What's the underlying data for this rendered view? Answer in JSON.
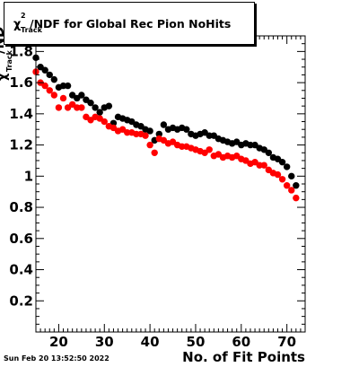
{
  "header": {
    "title_main": "/NDF for Global Rec Pion NoHits",
    "chi_symbol": "χ",
    "chi_power": "2",
    "chi_subscript": "Track"
  },
  "footer": {
    "datestamp": "Sun Feb 20 13:52:50 2022"
  },
  "axis_text": {
    "ytitle_main": "/ND",
    "ytitle_sub": "Track",
    "ytitle_power": "2",
    "xtitle": "No. of Fit Points"
  },
  "colors": {
    "series1": "#000000",
    "series2": "#ff0000"
  },
  "chart_data": {
    "type": "scatter",
    "title": "χ²_Track/NDF for Global Rec Pion NoHits",
    "xlabel": "No. of Fit Points",
    "ylabel": "χ²_Track/NDF",
    "xlim": [
      15,
      74
    ],
    "ylim": [
      0,
      1.9
    ],
    "xticks": [
      20,
      30,
      40,
      50,
      60,
      70
    ],
    "yticks": [
      0.2,
      0.4,
      0.6,
      0.8,
      1,
      1.2,
      1.4,
      1.6,
      1.8
    ],
    "grid": false,
    "series": [
      {
        "color": "#000000",
        "x": [
          15,
          16,
          17,
          18,
          19,
          20,
          21,
          22,
          23,
          24,
          25,
          26,
          27,
          28,
          29,
          30,
          31,
          32,
          33,
          34,
          35,
          36,
          37,
          38,
          39,
          40,
          41,
          42,
          43,
          44,
          45,
          46,
          47,
          48,
          49,
          50,
          51,
          52,
          53,
          54,
          55,
          56,
          57,
          58,
          59,
          60,
          61,
          62,
          63,
          64,
          65,
          66,
          67,
          68,
          69,
          70,
          71,
          72
        ],
        "y": [
          1.76,
          1.7,
          1.68,
          1.65,
          1.62,
          1.57,
          1.58,
          1.58,
          1.52,
          1.5,
          1.52,
          1.49,
          1.47,
          1.44,
          1.41,
          1.44,
          1.45,
          1.34,
          1.38,
          1.37,
          1.36,
          1.35,
          1.33,
          1.32,
          1.3,
          1.29,
          1.23,
          1.27,
          1.33,
          1.3,
          1.31,
          1.3,
          1.31,
          1.3,
          1.27,
          1.26,
          1.27,
          1.28,
          1.26,
          1.26,
          1.24,
          1.23,
          1.22,
          1.21,
          1.22,
          1.2,
          1.21,
          1.2,
          1.2,
          1.18,
          1.17,
          1.15,
          1.12,
          1.11,
          1.09,
          1.06,
          1.0,
          0.94
        ]
      },
      {
        "color": "#ff0000",
        "x": [
          15,
          16,
          17,
          18,
          19,
          20,
          21,
          22,
          23,
          24,
          25,
          26,
          27,
          28,
          29,
          30,
          31,
          32,
          33,
          34,
          35,
          36,
          37,
          38,
          39,
          40,
          41,
          42,
          43,
          44,
          45,
          46,
          47,
          48,
          49,
          50,
          51,
          52,
          53,
          54,
          55,
          56,
          57,
          58,
          59,
          60,
          61,
          62,
          63,
          64,
          65,
          66,
          67,
          68,
          69,
          70,
          71,
          72
        ],
        "y": [
          1.67,
          1.6,
          1.58,
          1.55,
          1.52,
          1.44,
          1.5,
          1.44,
          1.46,
          1.44,
          1.44,
          1.38,
          1.36,
          1.38,
          1.37,
          1.35,
          1.32,
          1.31,
          1.29,
          1.3,
          1.28,
          1.28,
          1.27,
          1.27,
          1.26,
          1.2,
          1.15,
          1.24,
          1.23,
          1.21,
          1.22,
          1.2,
          1.19,
          1.19,
          1.18,
          1.17,
          1.16,
          1.15,
          1.17,
          1.13,
          1.14,
          1.12,
          1.13,
          1.12,
          1.13,
          1.11,
          1.1,
          1.08,
          1.09,
          1.07,
          1.07,
          1.04,
          1.02,
          1.01,
          0.98,
          0.94,
          0.91,
          0.86
        ]
      }
    ]
  }
}
